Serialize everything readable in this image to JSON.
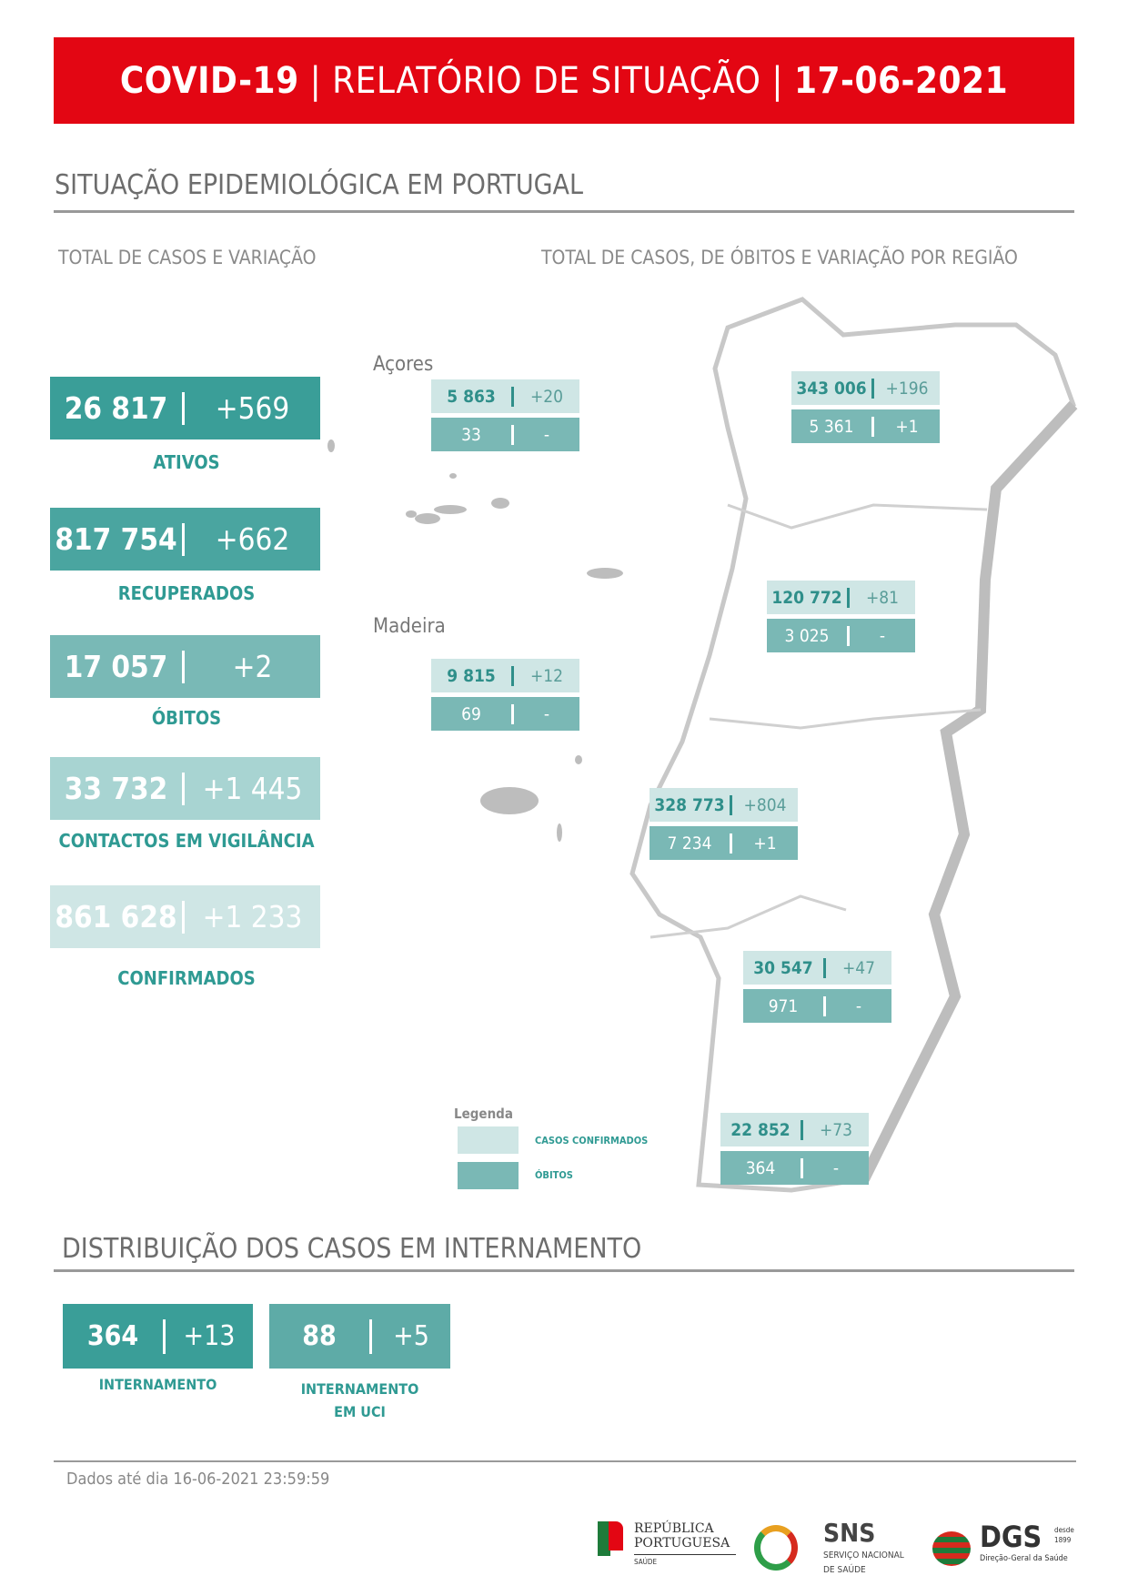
{
  "header": {
    "part1": "COVID-19",
    "sep": "|",
    "part2": "RELATÓRIO DE SITUAÇÃO",
    "part3": "17-06-2021"
  },
  "section1": {
    "title": "SITUAÇÃO EPIDEMIOLÓGICA EM PORTUGAL",
    "left_sub": "TOTAL DE CASOS E VARIAÇÃO",
    "right_sub": "TOTAL DE CASOS, DE ÓBITOS E VARIAÇÃO POR REGIÃO"
  },
  "totals": [
    {
      "value": "26 817",
      "delta": "+569",
      "label": "ATIVOS",
      "color": "#3a9e98"
    },
    {
      "value": "817 754",
      "delta": "+662",
      "label": "RECUPERADOS",
      "color": "#4aa5a0"
    },
    {
      "value": "17 057",
      "delta": "+2",
      "label": "ÓBITOS",
      "color": "#79b9b6"
    },
    {
      "value": "33 732",
      "delta": "+1 445",
      "label": "CONTACTOS EM VIGILÂNCIA",
      "color": "#a8d4d2"
    },
    {
      "value": "861 628",
      "delta": "+1 233",
      "label": "CONFIRMADOS",
      "color": "#cfe6e5"
    }
  ],
  "islands": {
    "acores": "Açores",
    "madeira": "Madeira"
  },
  "regions": [
    {
      "cases": "5 863",
      "cases_delta": "+20",
      "deaths": "33",
      "deaths_delta": "-"
    },
    {
      "cases": "9 815",
      "cases_delta": "+12",
      "deaths": "69",
      "deaths_delta": "-"
    },
    {
      "cases": "343 006",
      "cases_delta": "+196",
      "deaths": "5 361",
      "deaths_delta": "+1"
    },
    {
      "cases": "120 772",
      "cases_delta": "+81",
      "deaths": "3 025",
      "deaths_delta": "-"
    },
    {
      "cases": "328 773",
      "cases_delta": "+804",
      "deaths": "7 234",
      "deaths_delta": "+1"
    },
    {
      "cases": "30 547",
      "cases_delta": "+47",
      "deaths": "971",
      "deaths_delta": "-"
    },
    {
      "cases": "22 852",
      "cases_delta": "+73",
      "deaths": "364",
      "deaths_delta": "-"
    }
  ],
  "legend": {
    "title": "Legenda",
    "confirmed": "CASOS CONFIRMADOS",
    "deaths": "ÓBITOS",
    "confirmed_color": "#cfe6e5",
    "deaths_color": "#7ab8b5"
  },
  "section2": {
    "title": "DISTRIBUIÇÃO DOS CASOS EM INTERNAMENTO",
    "items": [
      {
        "value": "364",
        "delta": "+13",
        "label1": "INTERNAMENTO",
        "label2": ""
      },
      {
        "value": "88",
        "delta": "+5",
        "label1": "INTERNAMENTO",
        "label2": "EM UCI"
      }
    ]
  },
  "footer": {
    "note": "Dados até dia 16-06-2021 23:59:59",
    "logos": {
      "rp1": "REPÚBLICA",
      "rp2": "PORTUGUESA",
      "rp3": "SAÚDE",
      "sns": "SNS",
      "sns2": "SERVIÇO NACIONAL",
      "sns3": "DE SAÚDE",
      "dgs": "DGS",
      "dgs2": "desde",
      "dgs3": "1899",
      "dgs4": "Direção-Geral da Saúde"
    }
  }
}
